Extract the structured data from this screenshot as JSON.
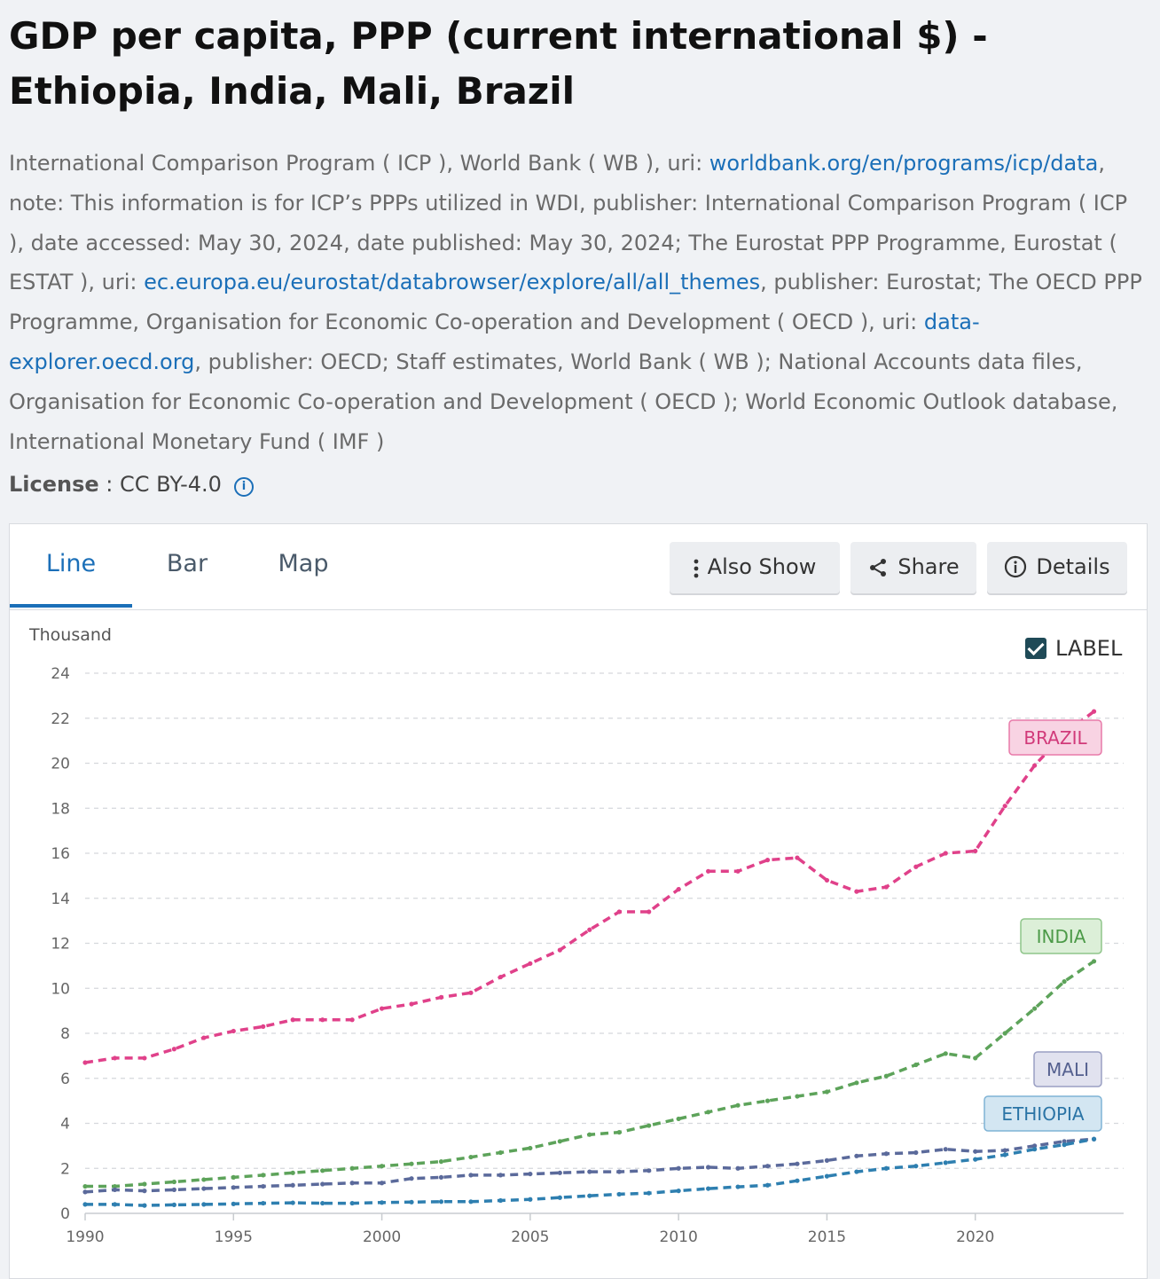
{
  "title": "GDP per capita, PPP (current international $) - Ethiopia, India, Mali, Brazil",
  "source": {
    "p1": "International Comparison Program ( ICP ), World Bank ( WB ), uri: ",
    "link1": "worldbank.org/en/programs/icp/data",
    "p2": ", note: This information is for ICP’s PPPs utilized in WDI, publisher: International Comparison Program ( ICP ), date accessed: May 30, 2024, date published: May 30, 2024; The Eurostat PPP Programme, Eurostat ( ESTAT ), uri: ",
    "link2": "ec.europa.eu/eurostat/databrowser/explore/all/all_themes",
    "p3": ", publisher: Eurostat; The OECD PPP Programme, Organisation for Economic Co-operation and Development ( OECD ), uri: ",
    "link3": "data-explorer.oecd.org",
    "p4": ", publisher: OECD; Staff estimates, World Bank ( WB ); National Accounts data files, Organisation for Economic Co-operation and Development ( OECD ); World Economic Outlook database, International Monetary Fund ( IMF )"
  },
  "license": {
    "label": "License",
    "sep": " : ",
    "value": "CC BY-4.0"
  },
  "tabs": {
    "line": "Line",
    "bar": "Bar",
    "map": "Map"
  },
  "buttons": {
    "also_show": "Also Show",
    "share": "Share",
    "details": "Details"
  },
  "label_toggle": "LABEL",
  "colors": {
    "brazil": "#e0418a",
    "india": "#5da35a",
    "mali": "#5b6a9b",
    "ethiopia": "#2e7fb0"
  },
  "chart_data": {
    "type": "line",
    "title": "GDP per capita, PPP (current international $)",
    "ylabel": "Thousand",
    "ylim": [
      0,
      24
    ],
    "yticks": [
      "0",
      "2",
      "4",
      "6",
      "8",
      "10",
      "12",
      "14",
      "16",
      "18",
      "20",
      "22",
      "24"
    ],
    "xticks": [
      "1990",
      "1995",
      "2000",
      "2005",
      "2010",
      "2015",
      "2020"
    ],
    "x": [
      1990,
      1991,
      1992,
      1993,
      1994,
      1995,
      1996,
      1997,
      1998,
      1999,
      2000,
      2001,
      2002,
      2003,
      2004,
      2005,
      2006,
      2007,
      2008,
      2009,
      2010,
      2011,
      2012,
      2013,
      2014,
      2015,
      2016,
      2017,
      2018,
      2019,
      2020,
      2021,
      2022,
      2023,
      2024
    ],
    "series": [
      {
        "name": "BRAZIL",
        "values": [
          6.7,
          6.9,
          6.9,
          7.3,
          7.8,
          8.1,
          8.3,
          8.6,
          8.6,
          8.6,
          9.1,
          9.3,
          9.6,
          9.8,
          10.5,
          11.1,
          11.7,
          12.6,
          13.4,
          13.4,
          14.4,
          15.2,
          15.2,
          15.7,
          15.8,
          14.8,
          14.3,
          14.5,
          15.4,
          16.0,
          16.1,
          18.1,
          19.9,
          21.3,
          22.3
        ]
      },
      {
        "name": "INDIA",
        "values": [
          1.2,
          1.2,
          1.3,
          1.4,
          1.5,
          1.6,
          1.7,
          1.8,
          1.9,
          2.0,
          2.1,
          2.2,
          2.3,
          2.5,
          2.7,
          2.9,
          3.2,
          3.5,
          3.6,
          3.9,
          4.2,
          4.5,
          4.8,
          5.0,
          5.2,
          5.4,
          5.8,
          6.1,
          6.6,
          7.1,
          6.9,
          8.0,
          9.1,
          10.3,
          11.2
        ]
      },
      {
        "name": "MALI",
        "values": [
          0.95,
          1.05,
          1.0,
          1.05,
          1.1,
          1.15,
          1.2,
          1.25,
          1.3,
          1.35,
          1.35,
          1.55,
          1.6,
          1.7,
          1.7,
          1.75,
          1.8,
          1.85,
          1.85,
          1.9,
          2.0,
          2.05,
          2.0,
          2.1,
          2.2,
          2.35,
          2.55,
          2.65,
          2.7,
          2.85,
          2.75,
          2.8,
          3.0,
          3.2,
          3.3
        ]
      },
      {
        "name": "ETHIOPIA",
        "values": [
          0.4,
          0.4,
          0.35,
          0.38,
          0.4,
          0.42,
          0.45,
          0.47,
          0.45,
          0.45,
          0.48,
          0.5,
          0.52,
          0.52,
          0.57,
          0.62,
          0.7,
          0.78,
          0.85,
          0.9,
          1.0,
          1.1,
          1.18,
          1.25,
          1.45,
          1.65,
          1.85,
          2.0,
          2.1,
          2.25,
          2.4,
          2.6,
          2.85,
          3.05,
          3.3
        ]
      }
    ]
  }
}
